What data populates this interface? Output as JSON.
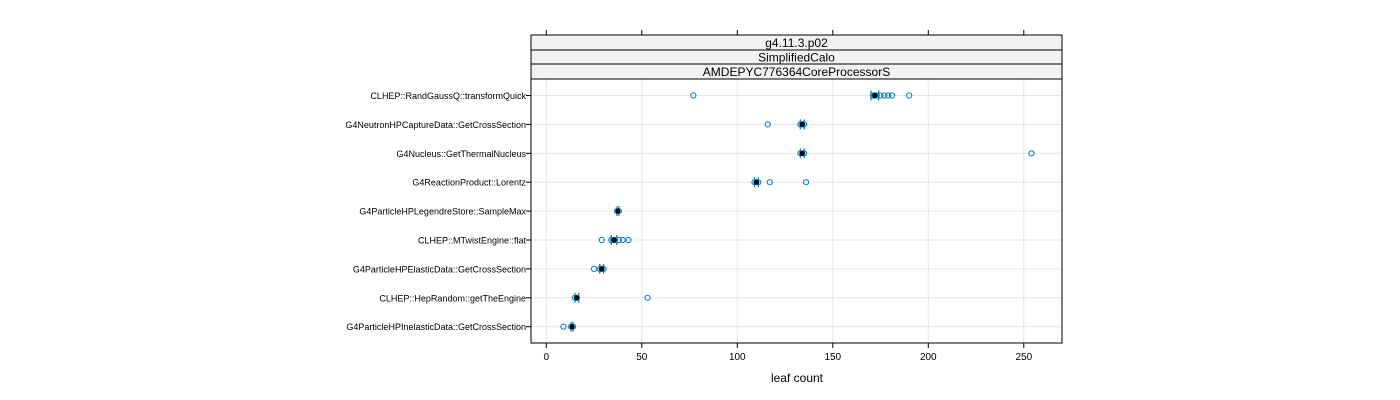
{
  "chart_data": {
    "type": "scatter",
    "strips": [
      "g4.11.3.p02",
      "SimplifiedCalo",
      "AMDEPYC776364CoreProcessorS"
    ],
    "xlabel": "leaf count",
    "xlim": [
      -8,
      270
    ],
    "xticks": [
      0,
      50,
      100,
      150,
      200,
      250
    ],
    "grid": true,
    "categories": [
      "CLHEP::RandGaussQ::transformQuick",
      "G4NeutronHPCaptureData::GetCrossSection",
      "G4Nucleus::GetThermalNucleus",
      "G4ReactionProduct::Lorentz",
      "G4ParticleHPLegendreStore::SampleMax",
      "CLHEP::MTwistEngine::flat",
      "G4ParticleHPElasticData::GetCrossSection",
      "CLHEP::HepRandom::getTheEngine",
      "G4ParticleHPInelasticData::GetCrossSection"
    ],
    "rows": [
      {
        "samples": [
          77,
          171,
          172,
          173,
          175,
          177,
          179,
          181,
          190
        ],
        "mean": 172,
        "ci": [
          170,
          174
        ]
      },
      {
        "samples": [
          116,
          133,
          134,
          135
        ],
        "mean": 134,
        "ci": [
          133,
          135
        ]
      },
      {
        "samples": [
          133,
          134,
          135,
          254
        ],
        "mean": 134,
        "ci": [
          133,
          135
        ]
      },
      {
        "samples": [
          109,
          110,
          111,
          117,
          136
        ],
        "mean": 110,
        "ci": [
          109,
          111
        ]
      },
      {
        "samples": [
          37,
          38
        ],
        "mean": 37.5,
        "ci": [
          37,
          38
        ]
      },
      {
        "samples": [
          29,
          34,
          35,
          36,
          38,
          40,
          43
        ],
        "mean": 35.5,
        "ci": [
          34,
          37
        ]
      },
      {
        "samples": [
          25,
          28,
          29,
          30
        ],
        "mean": 29,
        "ci": [
          28,
          30
        ]
      },
      {
        "samples": [
          15,
          16,
          53
        ],
        "mean": 16,
        "ci": [
          15,
          17
        ]
      },
      {
        "samples": [
          9,
          13,
          14
        ],
        "mean": 13.5,
        "ci": [
          13,
          14
        ]
      }
    ],
    "colors": {
      "points": "#0080bf",
      "mean": "#000000",
      "ci": "#0080bf",
      "grid": "#e6e6e6",
      "strip": "#f2f2f2"
    }
  }
}
